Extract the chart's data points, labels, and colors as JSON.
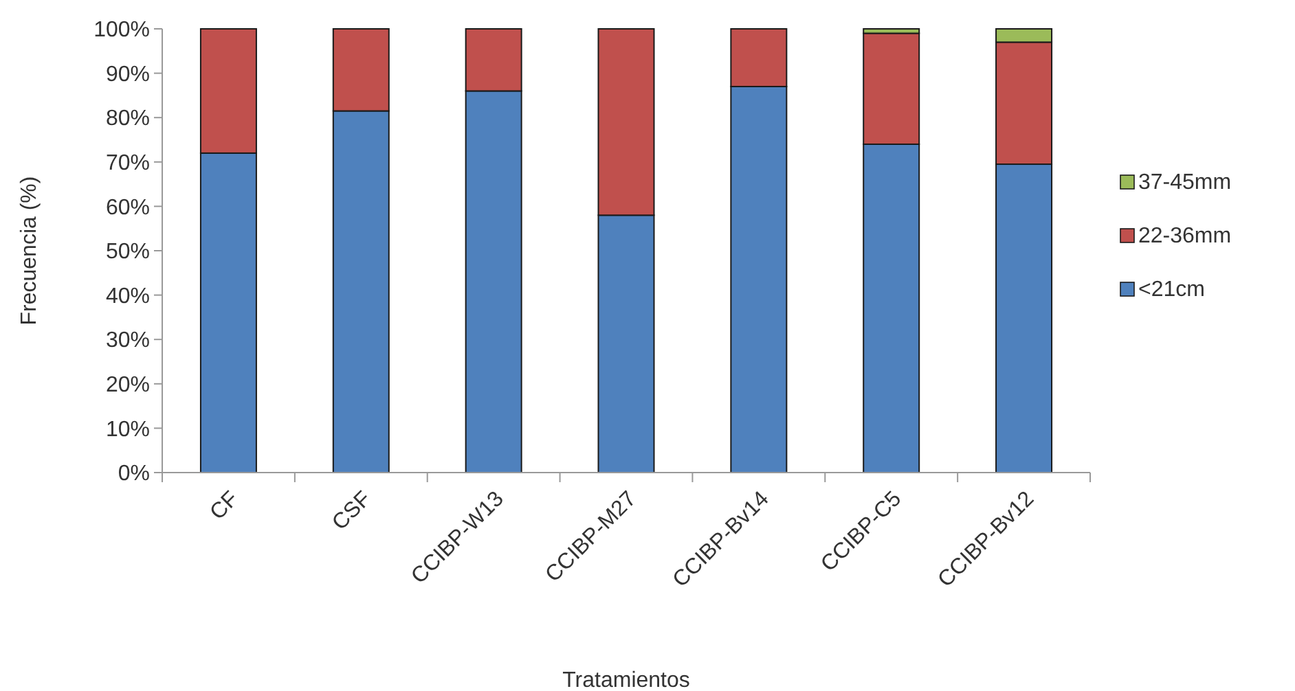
{
  "chart_data": {
    "type": "bar",
    "stacked": true,
    "xlabel": "Tratamientos",
    "ylabel": "Frecuencia (%)",
    "categories": [
      "CF",
      "CSF",
      "CCIBP-W13",
      "CCIBP-M27",
      "CCIBP-Bv14",
      "CCIBP-C5",
      "CCIBP-Bv12"
    ],
    "series": [
      {
        "name": "<21cm",
        "color": "#4f81bd",
        "values": [
          72,
          81.5,
          86,
          58,
          87,
          74,
          69.5
        ]
      },
      {
        "name": "22-36mm",
        "color": "#c0504d",
        "values": [
          28,
          18.5,
          14,
          42,
          13,
          25,
          27.5
        ]
      },
      {
        "name": "37-45mm",
        "color": "#9bbb59",
        "values": [
          0,
          0,
          0,
          0,
          0,
          1,
          3
        ]
      }
    ],
    "ylim": [
      0,
      100
    ],
    "yticks": [
      {
        "value": 0,
        "label": "0%"
      },
      {
        "value": 10,
        "label": "10%"
      },
      {
        "value": 20,
        "label": "20%"
      },
      {
        "value": 30,
        "label": "30%"
      },
      {
        "value": 40,
        "label": "40%"
      },
      {
        "value": 50,
        "label": "50%"
      },
      {
        "value": 60,
        "label": "60%"
      },
      {
        "value": 70,
        "label": "70%"
      },
      {
        "value": 80,
        "label": "80%"
      },
      {
        "value": 90,
        "label": "90%"
      },
      {
        "value": 100,
        "label": "100%"
      }
    ],
    "legend": "right"
  }
}
